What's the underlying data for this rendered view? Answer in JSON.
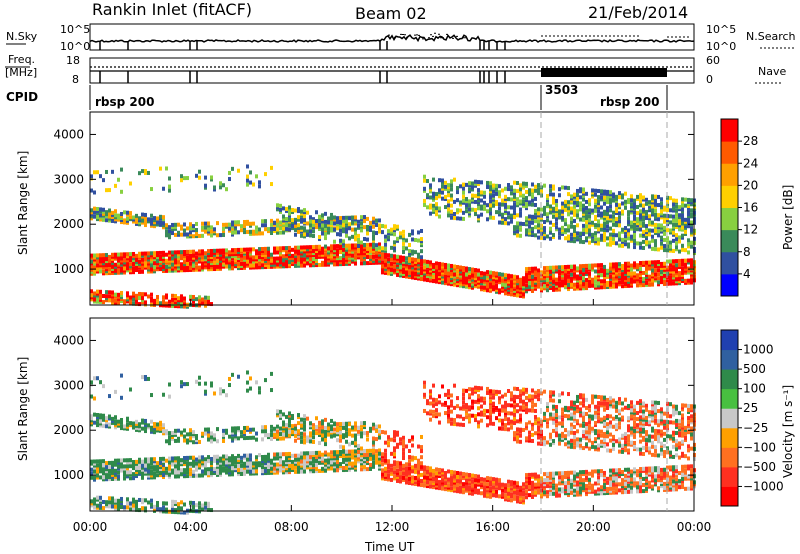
{
  "header": {
    "station": "Rankin Inlet (fitACF)",
    "beam": "Beam 02",
    "date": "21/Feb/2014"
  },
  "top_panels": {
    "nsky_label": "N.Sky",
    "nsky_ticks": [
      "10^5",
      "10^0"
    ],
    "nsearch_label": "N.Search",
    "freq_label_1": "Freq.",
    "freq_label_2": "[MHz]",
    "freq_ticks": [
      "18",
      "8"
    ],
    "nave_ticks": [
      "60",
      "0"
    ],
    "nave_label": "Nave",
    "cpid_label": "CPID",
    "cpid_segments": [
      "rbsp 200",
      "3503",
      "rbsp 200"
    ]
  },
  "chart_data": [
    {
      "type": "heatmap",
      "name": "power",
      "ylabel": "Slant Range [km]",
      "ylim": [
        200,
        4500
      ],
      "yticks": [
        1000,
        2000,
        3000,
        4000
      ],
      "colorbar_label": "Power [dB]",
      "colorbar_ticks": [
        "28",
        "24",
        "20",
        "16",
        "12",
        "8",
        "4"
      ],
      "colors": [
        "#ff0000",
        "#ff5a00",
        "#ffa000",
        "#ffd000",
        "#88d040",
        "#3a8a5a",
        "#3050a0",
        "#0000ff"
      ]
    },
    {
      "type": "heatmap",
      "name": "velocity",
      "ylabel": "Slant Range [km]",
      "ylim": [
        200,
        4500
      ],
      "yticks": [
        1000,
        2000,
        3000,
        4000
      ],
      "colorbar_label": "Velocity [m s⁻¹]",
      "colorbar_ticks": [
        "1000",
        "500",
        "100",
        "25",
        "−25",
        "−100",
        "−500",
        "−1000"
      ],
      "colors": [
        "#2040b0",
        "#3060a0",
        "#2f8a4a",
        "#48c040",
        "#c8c8c8",
        "#ffa000",
        "#ff7020",
        "#ff3020",
        "#ff0000"
      ]
    }
  ],
  "time_axis": {
    "xlabel": "Time UT",
    "ticks": [
      "00:00",
      "04:00",
      "08:00",
      "12:00",
      "16:00",
      "20:00",
      "00:00"
    ]
  }
}
